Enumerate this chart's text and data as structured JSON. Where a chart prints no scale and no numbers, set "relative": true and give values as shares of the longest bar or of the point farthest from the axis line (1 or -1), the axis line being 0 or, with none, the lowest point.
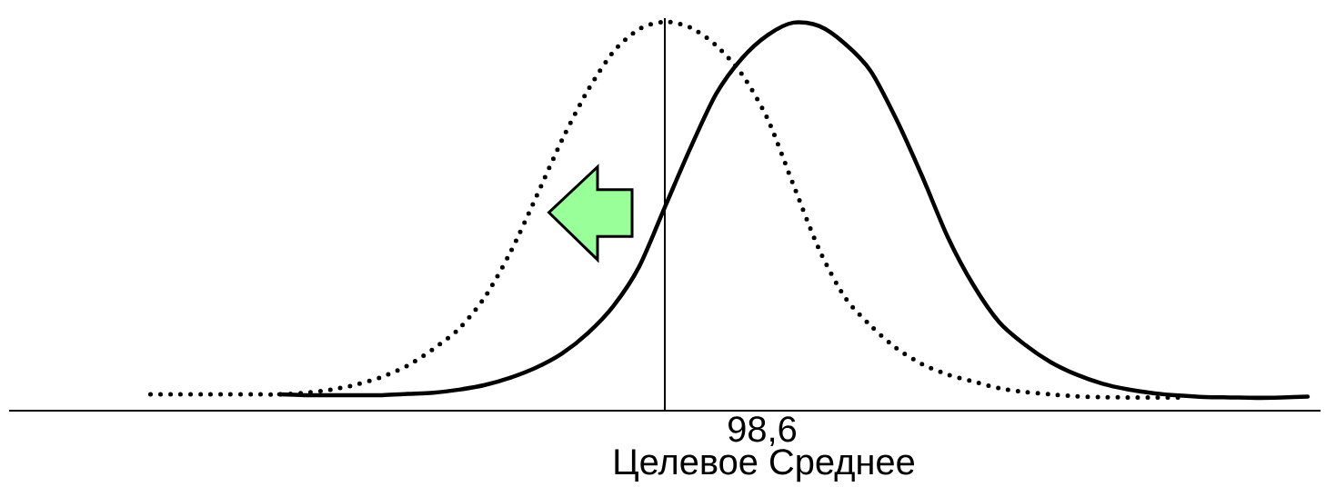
{
  "chart_data": {
    "type": "line",
    "relative": true,
    "categories": [
      null,
      null,
      null,
      null,
      null,
      null,
      null,
      null,
      null,
      null,
      null,
      null,
      null,
      null,
      null,
      null,
      null,
      null,
      null,
      null,
      null,
      null,
      null,
      null,
      null,
      null,
      null,
      null,
      null,
      null,
      null,
      null,
      null,
      null,
      null,
      null,
      null,
      null,
      null,
      null,
      null,
      null,
      null,
      null,
      null,
      null,
      null,
      null,
      null,
      null,
      null
    ],
    "xlabel": "Целевое Среднее",
    "annotations": [
      "98,6"
    ],
    "series": [
      {
        "color": "#000000",
        "line_style": "dotted",
        "values": [
          null,
          null,
          null,
          null,
          null,
          0.042,
          0.042,
          0.042,
          0.042,
          0.042,
          0.042,
          0.046,
          0.054,
          0.067,
          0.087,
          0.116,
          0.159,
          0.211,
          0.292,
          0.408,
          0.55,
          0.696,
          0.823,
          0.923,
          0.981,
          1.0,
          0.985,
          0.939,
          0.865,
          0.75,
          0.581,
          0.415,
          0.292,
          0.219,
          0.161,
          0.12,
          0.093,
          0.075,
          0.058,
          0.048,
          0.042,
          0.037,
          0.035,
          0.034,
          0.034,
          0.034,
          null,
          null,
          null,
          null,
          null
        ]
      },
      {
        "color": "#000000",
        "line_style": "solid",
        "values": [
          null,
          null,
          null,
          null,
          null,
          null,
          null,
          null,
          null,
          null,
          0.042,
          0.04,
          0.04,
          0.04,
          0.04,
          0.043,
          0.046,
          0.054,
          0.066,
          0.085,
          0.111,
          0.147,
          0.199,
          0.269,
          0.37,
          0.523,
          0.676,
          0.815,
          0.906,
          0.966,
          0.998,
          0.989,
          0.944,
          0.874,
          0.75,
          0.604,
          0.447,
          0.323,
          0.228,
          0.17,
          0.125,
          0.093,
          0.07,
          0.055,
          0.045,
          0.039,
          0.035,
          0.034,
          0.033,
          0.034,
          0.036
        ]
      }
    ]
  }
}
